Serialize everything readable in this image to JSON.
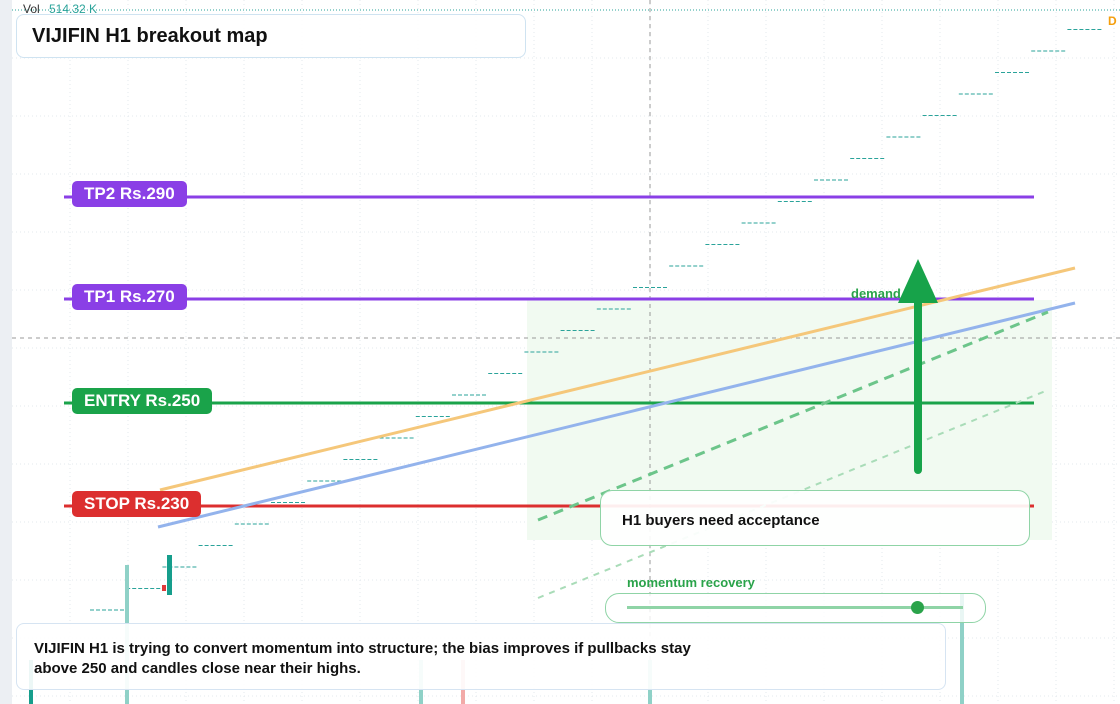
{
  "volume": {
    "label": "Vol",
    "value": "514.32 K"
  },
  "badge": "D",
  "title": "VIJIFIN H1 breakout map",
  "levels": {
    "tp2": "TP2 Rs.290",
    "tp1": "TP1 Rs.270",
    "entry": "ENTRY Rs.250",
    "stop": "STOP Rs.230"
  },
  "zone_label": "demand zone",
  "callout": "H1 buyers need acceptance",
  "slider_label": "momentum recovery",
  "note": "VIJIFIN H1 is trying to convert momentum into structure; the bias improves if pullbacks stay above 250 and candles close near their highs."
}
